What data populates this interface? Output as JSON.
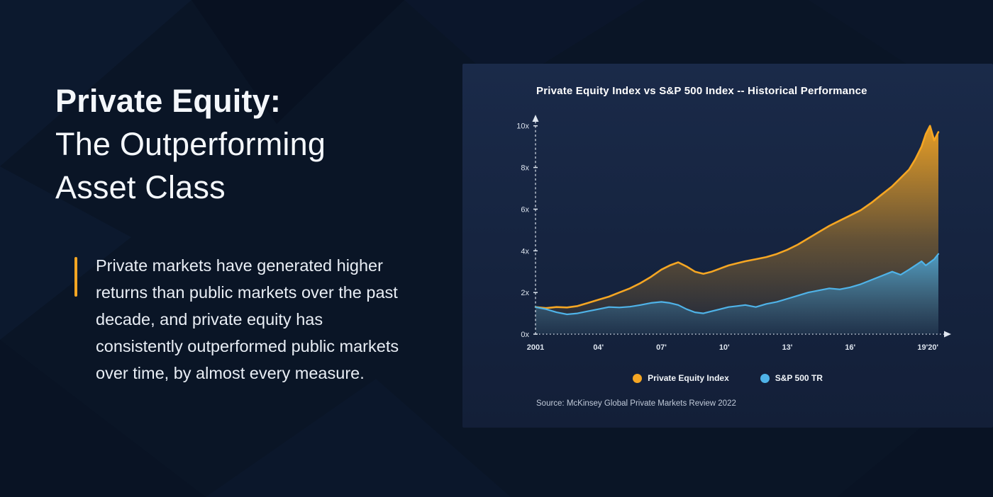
{
  "left": {
    "title_line1": "Private Equity:",
    "title_line2": "The Outperforming",
    "title_line3": "Asset Class",
    "body": "Private markets have generated higher returns than public markets over the past decade, and private equity has consistently outperformed public markets over time, by almost every measure."
  },
  "chart": {
    "title": "Private Equity Index vs S&P 500 Index -- Historical Performance",
    "source": "Source: McKinsey Global Private Markets Review 2022"
  },
  "colors": {
    "accent_orange": "#F5A623",
    "accent_blue": "#4FB3E8",
    "card_bg": "#15233E",
    "page_bg": "#0A1526",
    "axis": "#DFE6EF"
  },
  "chart_data": {
    "type": "area",
    "title": "Private Equity Index vs S&P 500 Index -- Historical Performance",
    "xlabel": "",
    "ylabel": "",
    "grid": false,
    "legend_position": "bottom",
    "xlim": [
      2001,
      2020.2
    ],
    "ylim": [
      0,
      10.5
    ],
    "y_ticks": [
      {
        "label": "10x",
        "v": 10
      },
      {
        "label": "8x",
        "v": 8
      },
      {
        "label": "6x",
        "v": 6
      },
      {
        "label": "4x",
        "v": 4
      },
      {
        "label": "2x",
        "v": 2
      },
      {
        "label": "0x",
        "v": 0
      }
    ],
    "x_ticks": [
      {
        "label": "2001",
        "x": 2001
      },
      {
        "label": "04'",
        "x": 2004
      },
      {
        "label": "07'",
        "x": 2007
      },
      {
        "label": "10'",
        "x": 2010
      },
      {
        "label": "13'",
        "x": 2013
      },
      {
        "label": "16'",
        "x": 2016
      },
      {
        "label": "19'20'",
        "x": 2019.7
      }
    ],
    "x": [
      2001,
      2001.5,
      2002,
      2002.5,
      2003,
      2003.5,
      2004,
      2004.5,
      2005,
      2005.5,
      2006,
      2006.5,
      2007,
      2007.4,
      2007.8,
      2008.2,
      2008.6,
      2009,
      2009.4,
      2009.8,
      2010.2,
      2010.6,
      2011,
      2011.5,
      2012,
      2012.5,
      2013,
      2013.5,
      2014,
      2014.5,
      2015,
      2015.5,
      2016,
      2016.5,
      2017,
      2017.5,
      2018,
      2018.4,
      2018.8,
      2019.1,
      2019.4,
      2019.6,
      2019.8,
      2020,
      2020.2
    ],
    "series": [
      {
        "name": "Private Equity Index",
        "color": "#F5A623",
        "values": [
          1.3,
          1.25,
          1.3,
          1.28,
          1.35,
          1.5,
          1.65,
          1.8,
          2.0,
          2.2,
          2.45,
          2.75,
          3.1,
          3.3,
          3.45,
          3.25,
          3.0,
          2.9,
          3.0,
          3.15,
          3.3,
          3.4,
          3.5,
          3.6,
          3.7,
          3.85,
          4.05,
          4.3,
          4.6,
          4.9,
          5.2,
          5.45,
          5.7,
          5.95,
          6.3,
          6.7,
          7.1,
          7.5,
          7.9,
          8.4,
          9.0,
          9.6,
          10.0,
          9.3,
          9.7
        ]
      },
      {
        "name": "S&P 500 TR",
        "color": "#4FB3E8",
        "values": [
          1.3,
          1.2,
          1.05,
          0.95,
          1.0,
          1.1,
          1.2,
          1.3,
          1.28,
          1.32,
          1.4,
          1.5,
          1.55,
          1.5,
          1.4,
          1.2,
          1.05,
          1.0,
          1.1,
          1.2,
          1.3,
          1.35,
          1.4,
          1.3,
          1.45,
          1.55,
          1.7,
          1.85,
          2.0,
          2.1,
          2.2,
          2.15,
          2.25,
          2.4,
          2.6,
          2.8,
          3.0,
          2.85,
          3.1,
          3.3,
          3.5,
          3.3,
          3.45,
          3.6,
          3.85
        ]
      }
    ]
  }
}
